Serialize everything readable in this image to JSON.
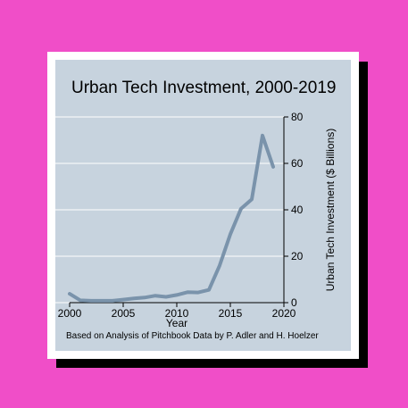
{
  "chart_data": {
    "type": "line",
    "title": "Urban Tech Investment, 2000-2019",
    "xlabel": "Year",
    "ylabel": "Urban Tech Investment ($ Billions)",
    "note": "Based on Analysis of Pitchbook Data by P. Adler and H. Hoelzer",
    "xlim": [
      2000,
      2020
    ],
    "ylim": [
      0,
      80
    ],
    "x_ticks": [
      2000,
      2005,
      2010,
      2015,
      2020
    ],
    "y_ticks": [
      0,
      20,
      40,
      60,
      80
    ],
    "grid": true,
    "y_axis_side": "right",
    "series": [
      {
        "x": [
          2000,
          2001,
          2002,
          2003,
          2004,
          2005,
          2006,
          2007,
          2008,
          2009,
          2010,
          2011,
          2012,
          2013,
          2014,
          2015,
          2016,
          2017,
          2018,
          2019
        ],
        "values": [
          3.8,
          1,
          0.8,
          0.8,
          0.8,
          1.3,
          1.8,
          2.2,
          3,
          2.5,
          3.3,
          4.5,
          4.4,
          5.5,
          16,
          29.5,
          40.5,
          44.5,
          72,
          58.5
        ],
        "color": "#7a93ab"
      }
    ]
  }
}
